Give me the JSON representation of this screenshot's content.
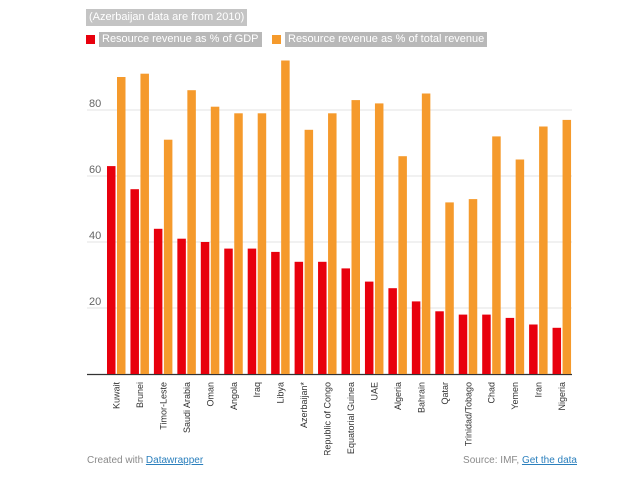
{
  "chart_data": {
    "type": "bar",
    "note": "(Azerbaijan data are from 2010)",
    "categories": [
      "Kuwait",
      "Brunei",
      "Timor-Leste",
      "Saudi Arabia",
      "Oman",
      "Angola",
      "Iraq",
      "Libya",
      "Azerbaijan*",
      "Republic of Congo",
      "Equatorial Guinea",
      "UAE",
      "Algeria",
      "Bahrain",
      "Qatar",
      "Trinidad/Tobago",
      "Chad",
      "Yemen",
      "Iran",
      "Nigeria"
    ],
    "series": [
      {
        "name": "Resource revenue as % of GDP",
        "color": "#e8000d",
        "values": [
          63,
          56,
          44,
          41,
          40,
          38,
          38,
          37,
          34,
          34,
          32,
          28,
          26,
          22,
          19,
          18,
          18,
          17,
          15,
          14
        ]
      },
      {
        "name": "Resource revenue as % of total revenue",
        "color": "#f59a2c",
        "values": [
          90,
          91,
          71,
          86,
          81,
          79,
          79,
          95,
          74,
          79,
          83,
          82,
          66,
          85,
          52,
          53,
          72,
          65,
          75,
          77
        ]
      }
    ],
    "yticks": [
      20,
      40,
      60,
      80
    ],
    "ylim": [
      0,
      100
    ],
    "xlabel": "",
    "ylabel": "",
    "grid": true,
    "legend": "top-left"
  },
  "footer": {
    "created_prefix": "Created with ",
    "created_link": "Datawrapper",
    "source_prefix": "Source: IMF, ",
    "source_link": "Get the data"
  }
}
